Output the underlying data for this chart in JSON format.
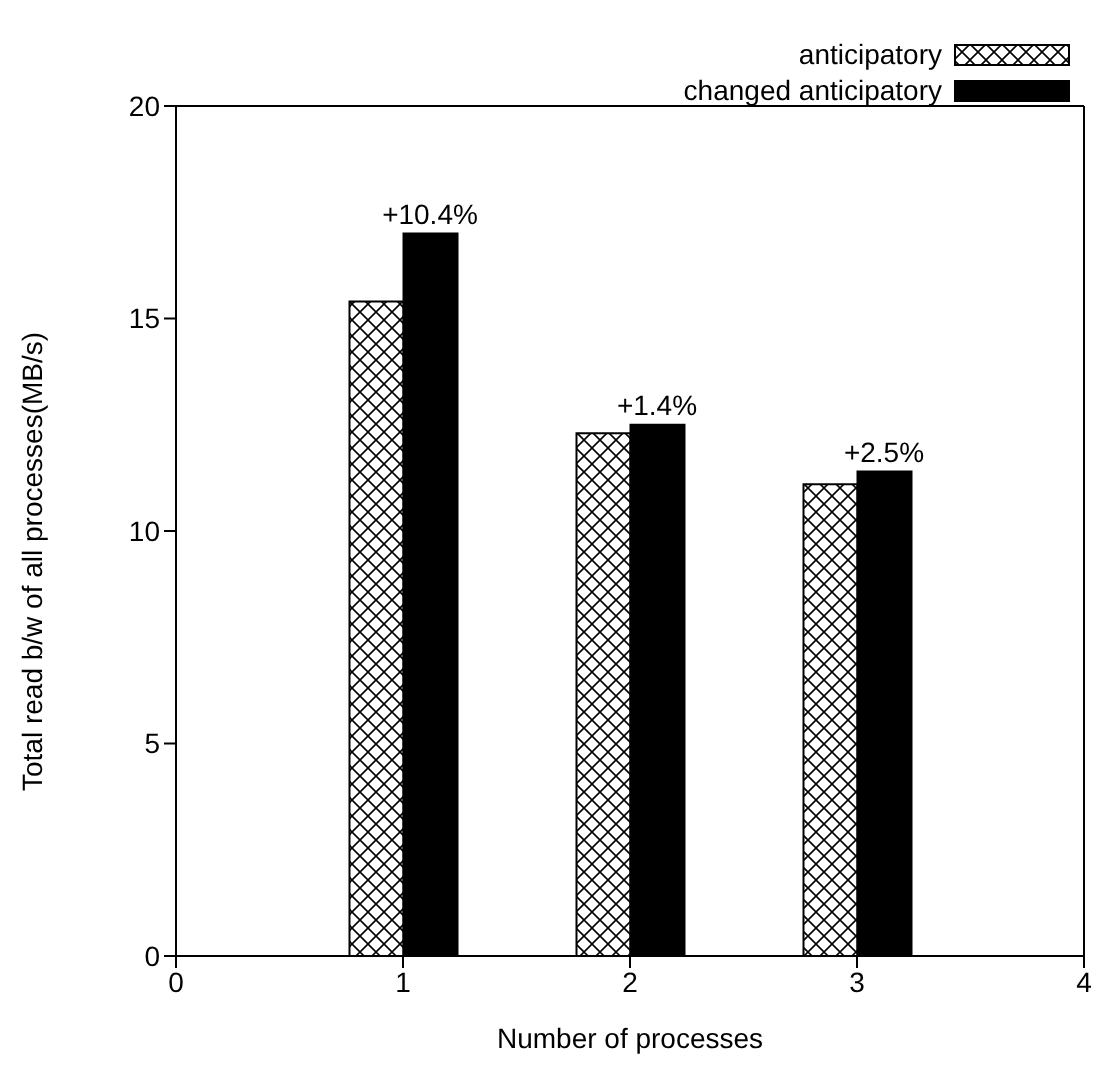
{
  "chart_data": {
    "type": "bar",
    "xlabel": "Number of processes",
    "ylabel": "Total read b/w of all processes(MB/s)",
    "x": [
      1,
      2,
      3
    ],
    "series": [
      {
        "name": "anticipatory",
        "color": "#000000",
        "values": [
          15.4,
          12.3,
          11.1
        ]
      },
      {
        "name": "changed anticipatory",
        "color": "#000000",
        "values": [
          17.0,
          12.5,
          11.4
        ]
      }
    ],
    "xlim": [
      0,
      4
    ],
    "xticks": [
      0,
      1,
      2,
      3,
      4
    ],
    "ylim": [
      0,
      20
    ],
    "yticks": [
      0,
      5,
      10,
      15,
      20
    ],
    "grid": false,
    "legend": "top right",
    "annotations": [
      {
        "text": "+10.4%",
        "x": 1,
        "y": 17.0
      },
      {
        "text": "+1.4%",
        "x": 2,
        "y": 12.5
      },
      {
        "text": "+2.5%",
        "x": 3,
        "y": 11.4
      }
    ]
  }
}
